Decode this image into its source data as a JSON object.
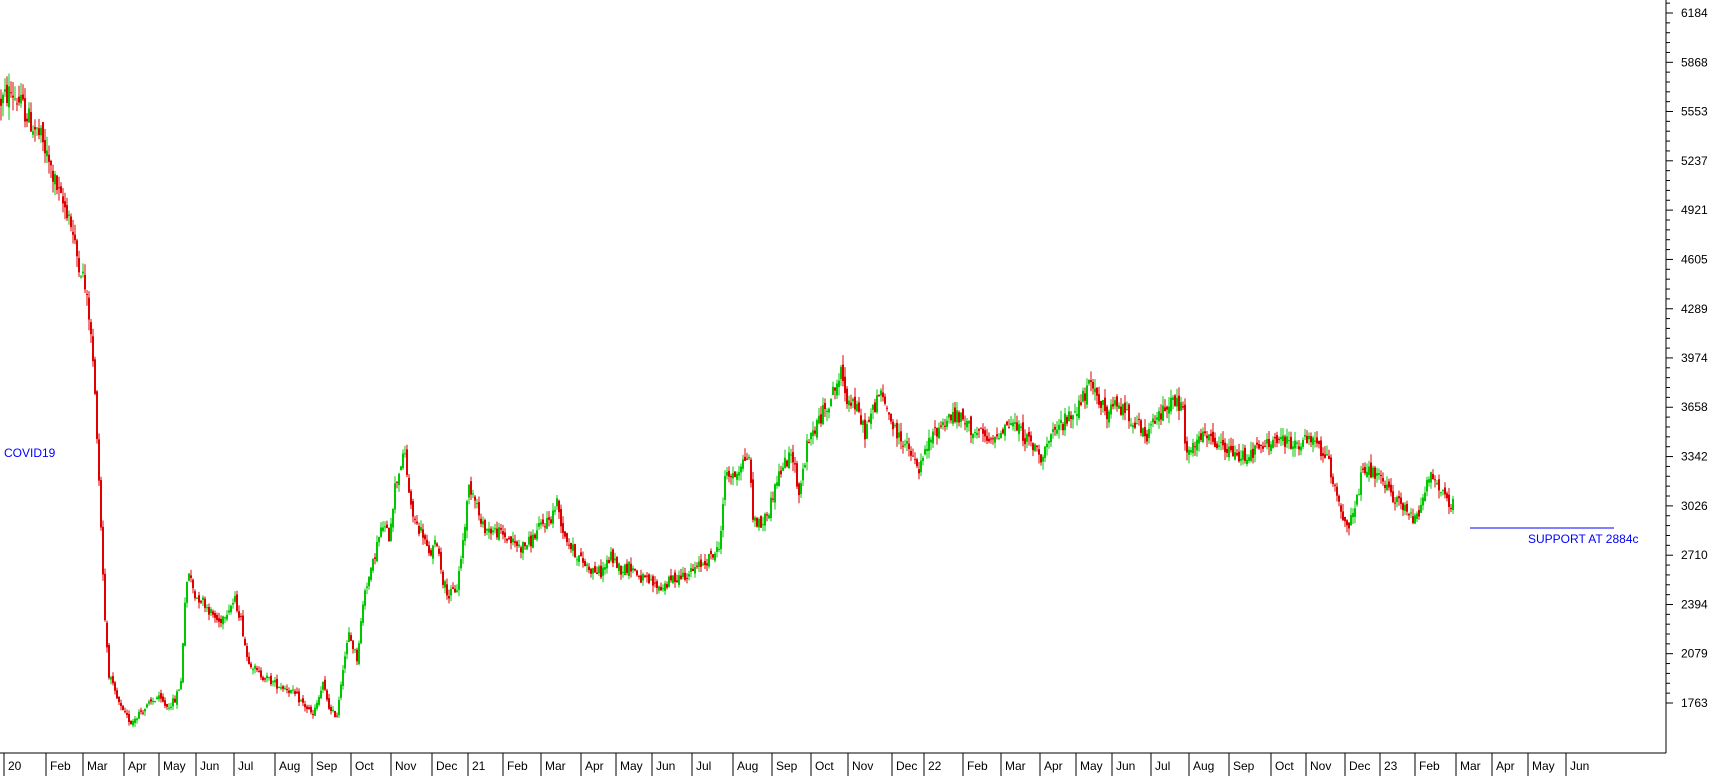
{
  "chart_data": {
    "type": "candlestick",
    "colors": {
      "up": "#00c800",
      "down": "#e00000",
      "annotation": "#0000ff",
      "axis": "#000000"
    },
    "y_axis": {
      "side": "right",
      "ticks": [
        1763,
        2079,
        2394,
        2710,
        3026,
        3342,
        3658,
        3974,
        4289,
        4605,
        4921,
        5237,
        5553,
        5868,
        6184
      ],
      "tick_labels": [
        "1763",
        "2079",
        "2394",
        "2710",
        "3026",
        "3342",
        "3658",
        "3974",
        "4289",
        "4605",
        "4921",
        "5237",
        "5553",
        "5868",
        "6184"
      ],
      "ylim": [
        1440,
        6270
      ]
    },
    "x_axis": {
      "labels": [
        "20",
        "Feb",
        "Mar",
        "Apr",
        "May",
        "Jun",
        "Jul",
        "Aug",
        "Sep",
        "Oct",
        "Nov",
        "Dec",
        "21",
        "Feb",
        "Mar",
        "Apr",
        "May",
        "Jun",
        "Jul",
        "Aug",
        "Sep",
        "Oct",
        "Nov",
        "Dec",
        "22",
        "Feb",
        "Mar",
        "Apr",
        "May",
        "Jun",
        "Jul",
        "Aug",
        "Sep",
        "Oct",
        "Nov",
        "Dec",
        "23",
        "Feb",
        "Mar",
        "Apr",
        "May",
        "Jun"
      ]
    },
    "series": [
      {
        "price_path": [
          [
            0,
            5620
          ],
          [
            10,
            5680
          ],
          [
            20,
            5600
          ],
          [
            30,
            5480
          ],
          [
            40,
            5380
          ],
          [
            50,
            5180
          ],
          [
            60,
            4980
          ],
          [
            68,
            4900
          ],
          [
            75,
            4650
          ],
          [
            82,
            4500
          ],
          [
            88,
            4250
          ],
          [
            92,
            3950
          ],
          [
            96,
            3500
          ],
          [
            100,
            2900
          ],
          [
            104,
            2300
          ],
          [
            108,
            1950
          ],
          [
            115,
            1800
          ],
          [
            122,
            1700
          ],
          [
            130,
            1640
          ],
          [
            138,
            1700
          ],
          [
            146,
            1740
          ],
          [
            156,
            1800
          ],
          [
            166,
            1740
          ],
          [
            174,
            1780
          ],
          [
            180,
            1900
          ],
          [
            184,
            2420
          ],
          [
            188,
            2600
          ],
          [
            194,
            2450
          ],
          [
            202,
            2420
          ],
          [
            210,
            2340
          ],
          [
            218,
            2280
          ],
          [
            226,
            2360
          ],
          [
            234,
            2420
          ],
          [
            240,
            2300
          ],
          [
            246,
            2060
          ],
          [
            256,
            1960
          ],
          [
            266,
            1920
          ],
          [
            276,
            1880
          ],
          [
            286,
            1860
          ],
          [
            296,
            1800
          ],
          [
            306,
            1730
          ],
          [
            312,
            1680
          ],
          [
            318,
            1800
          ],
          [
            322,
            1880
          ],
          [
            330,
            1700
          ],
          [
            336,
            1690
          ],
          [
            342,
            2000
          ],
          [
            348,
            2200
          ],
          [
            356,
            2050
          ],
          [
            364,
            2500
          ],
          [
            370,
            2600
          ],
          [
            376,
            2780
          ],
          [
            382,
            2900
          ],
          [
            388,
            2830
          ],
          [
            394,
            3150
          ],
          [
            400,
            3300
          ],
          [
            404,
            3350
          ],
          [
            410,
            3000
          ],
          [
            416,
            2900
          ],
          [
            422,
            2850
          ],
          [
            428,
            2700
          ],
          [
            436,
            2800
          ],
          [
            442,
            2550
          ],
          [
            448,
            2450
          ],
          [
            456,
            2500
          ],
          [
            462,
            2800
          ],
          [
            468,
            3150
          ],
          [
            474,
            3100
          ],
          [
            480,
            2900
          ],
          [
            490,
            2870
          ],
          [
            500,
            2850
          ],
          [
            510,
            2800
          ],
          [
            520,
            2760
          ],
          [
            530,
            2800
          ],
          [
            540,
            2900
          ],
          [
            550,
            2950
          ],
          [
            556,
            3050
          ],
          [
            562,
            2870
          ],
          [
            570,
            2760
          ],
          [
            580,
            2680
          ],
          [
            590,
            2620
          ],
          [
            600,
            2600
          ],
          [
            610,
            2700
          ],
          [
            620,
            2620
          ],
          [
            630,
            2640
          ],
          [
            640,
            2560
          ],
          [
            650,
            2530
          ],
          [
            660,
            2500
          ],
          [
            670,
            2550
          ],
          [
            680,
            2580
          ],
          [
            690,
            2600
          ],
          [
            700,
            2650
          ],
          [
            710,
            2700
          ],
          [
            718,
            2750
          ],
          [
            722,
            3050
          ],
          [
            725,
            3260
          ],
          [
            732,
            3200
          ],
          [
            740,
            3300
          ],
          [
            748,
            3350
          ],
          [
            752,
            2950
          ],
          [
            760,
            2900
          ],
          [
            768,
            3000
          ],
          [
            776,
            3200
          ],
          [
            784,
            3300
          ],
          [
            792,
            3350
          ],
          [
            798,
            3100
          ],
          [
            806,
            3400
          ],
          [
            812,
            3500
          ],
          [
            820,
            3600
          ],
          [
            828,
            3700
          ],
          [
            834,
            3780
          ],
          [
            840,
            3870
          ],
          [
            846,
            3720
          ],
          [
            852,
            3700
          ],
          [
            858,
            3600
          ],
          [
            864,
            3500
          ],
          [
            870,
            3600
          ],
          [
            878,
            3750
          ],
          [
            886,
            3650
          ],
          [
            894,
            3500
          ],
          [
            902,
            3450
          ],
          [
            910,
            3350
          ],
          [
            918,
            3250
          ],
          [
            926,
            3400
          ],
          [
            934,
            3500
          ],
          [
            942,
            3560
          ],
          [
            950,
            3600
          ],
          [
            960,
            3580
          ],
          [
            970,
            3520
          ],
          [
            980,
            3480
          ],
          [
            990,
            3420
          ],
          [
            1000,
            3520
          ],
          [
            1010,
            3560
          ],
          [
            1020,
            3500
          ],
          [
            1030,
            3420
          ],
          [
            1040,
            3350
          ],
          [
            1050,
            3450
          ],
          [
            1060,
            3550
          ],
          [
            1070,
            3600
          ],
          [
            1080,
            3700
          ],
          [
            1088,
            3780
          ],
          [
            1096,
            3750
          ],
          [
            1106,
            3600
          ],
          [
            1116,
            3680
          ],
          [
            1126,
            3620
          ],
          [
            1136,
            3560
          ],
          [
            1144,
            3450
          ],
          [
            1152,
            3550
          ],
          [
            1160,
            3620
          ],
          [
            1168,
            3700
          ],
          [
            1176,
            3680
          ],
          [
            1182,
            3650
          ],
          [
            1184,
            3400
          ],
          [
            1190,
            3350
          ],
          [
            1196,
            3450
          ],
          [
            1206,
            3460
          ],
          [
            1216,
            3420
          ],
          [
            1226,
            3380
          ],
          [
            1236,
            3340
          ],
          [
            1246,
            3360
          ],
          [
            1256,
            3380
          ],
          [
            1266,
            3420
          ],
          [
            1276,
            3450
          ],
          [
            1286,
            3430
          ],
          [
            1296,
            3420
          ],
          [
            1306,
            3440
          ],
          [
            1316,
            3420
          ],
          [
            1326,
            3330
          ],
          [
            1334,
            3150
          ],
          [
            1342,
            2960
          ],
          [
            1348,
            2900
          ],
          [
            1354,
            3000
          ],
          [
            1360,
            3200
          ],
          [
            1366,
            3250
          ],
          [
            1374,
            3230
          ],
          [
            1382,
            3160
          ],
          [
            1390,
            3100
          ],
          [
            1398,
            3060
          ],
          [
            1406,
            2980
          ],
          [
            1412,
            2950
          ],
          [
            1418,
            3000
          ],
          [
            1424,
            3150
          ],
          [
            1430,
            3220
          ],
          [
            1436,
            3170
          ],
          [
            1442,
            3100
          ],
          [
            1448,
            3000
          ],
          [
            1452,
            3040
          ]
        ]
      }
    ],
    "annotations": [
      {
        "text": "COVID19"
      },
      {
        "text": "SUPPORT AT 2884c",
        "value": 2884
      }
    ]
  }
}
